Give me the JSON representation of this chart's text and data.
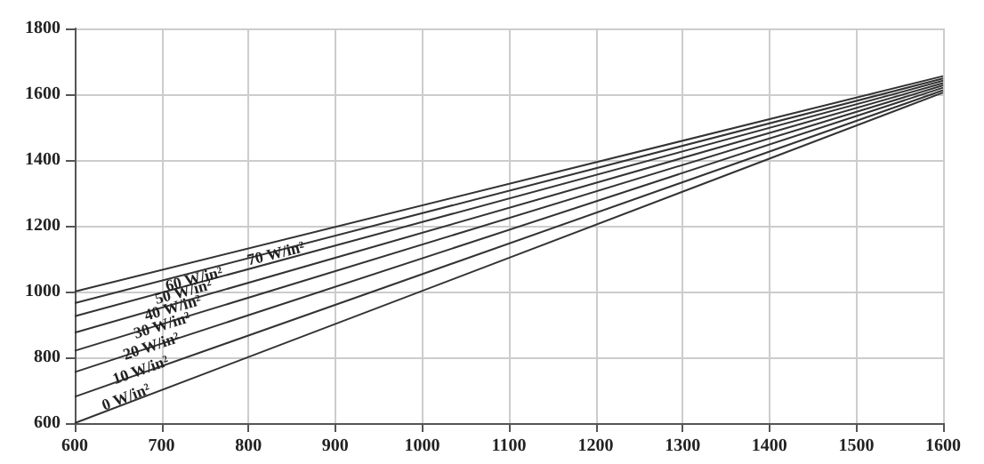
{
  "chart_data": {
    "type": "line",
    "x": [
      600,
      1600
    ],
    "xlim": [
      600,
      1600
    ],
    "xticks": [
      600,
      700,
      800,
      900,
      1000,
      1100,
      1200,
      1300,
      1400,
      1500,
      1600
    ],
    "ylim": [
      600,
      1800
    ],
    "yticks": [
      600,
      800,
      1000,
      1200,
      1400,
      1600,
      1800
    ],
    "grid": true,
    "legend": false,
    "marker": "none",
    "line_style": "solid",
    "series": [
      {
        "name": "0 W/in²",
        "color": "#333333",
        "values": [
          600,
          1605
        ]
      },
      {
        "name": "10 W/in²",
        "color": "#333333",
        "values": [
          680,
          1612
        ]
      },
      {
        "name": "20 W/in²",
        "color": "#333333",
        "values": [
          755,
          1620
        ]
      },
      {
        "name": "30 W/in²",
        "color": "#333333",
        "values": [
          820,
          1627
        ]
      },
      {
        "name": "40 W/in²",
        "color": "#333333",
        "values": [
          875,
          1634
        ]
      },
      {
        "name": "50 W/in²",
        "color": "#333333",
        "values": [
          925,
          1641
        ]
      },
      {
        "name": "60 W/in²",
        "color": "#333333",
        "values": [
          965,
          1648
        ]
      },
      {
        "name": "70 W/in²",
        "color": "#333333",
        "values": [
          1000,
          1655
        ]
      }
    ]
  }
}
